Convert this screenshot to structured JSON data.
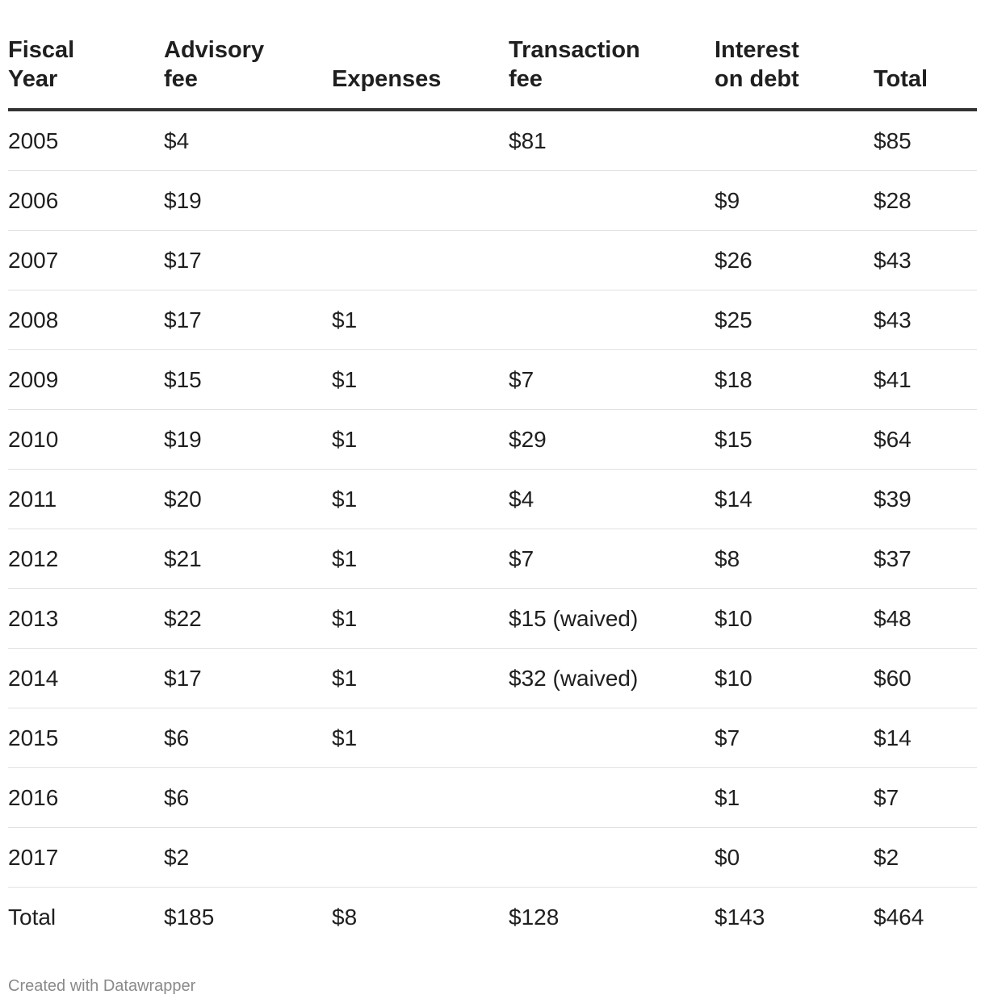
{
  "chart_data": {
    "type": "table",
    "columns": [
      "Fiscal Year",
      "Advisory fee",
      "Expenses",
      "Transaction fee",
      "Interest on debt",
      "Total"
    ],
    "header": [
      [
        "Fiscal",
        "Year"
      ],
      [
        "Advisory",
        "fee"
      ],
      [
        "",
        "Expenses"
      ],
      [
        "Transaction",
        "fee"
      ],
      [
        "Interest",
        "on debt"
      ],
      [
        "",
        "Total"
      ]
    ],
    "rows": [
      [
        "2005",
        "$4",
        "",
        "$81",
        "",
        "$85"
      ],
      [
        "2006",
        "$19",
        "",
        "",
        "$9",
        "$28"
      ],
      [
        "2007",
        "$17",
        "",
        "",
        "$26",
        "$43"
      ],
      [
        "2008",
        "$17",
        "$1",
        "",
        "$25",
        "$43"
      ],
      [
        "2009",
        "$15",
        "$1",
        "$7",
        "$18",
        "$41"
      ],
      [
        "2010",
        "$19",
        "$1",
        "$29",
        "$15",
        "$64"
      ],
      [
        "2011",
        "$20",
        "$1",
        "$4",
        "$14",
        "$39"
      ],
      [
        "2012",
        "$21",
        "$1",
        "$7",
        "$8",
        "$37"
      ],
      [
        "2013",
        "$22",
        "$1",
        "$15 (waived)",
        "$10",
        "$48"
      ],
      [
        "2014",
        "$17",
        "$1",
        "$32 (waived)",
        "$10",
        "$60"
      ],
      [
        "2015",
        "$6",
        "$1",
        "",
        "$7",
        "$14"
      ],
      [
        "2016",
        "$6",
        "",
        "",
        "$1",
        "$7"
      ],
      [
        "2017",
        "$2",
        "",
        "",
        "$0",
        "$2"
      ],
      [
        "Total",
        "$185",
        "$8",
        "$128",
        "$143",
        "$464"
      ]
    ]
  },
  "footer": {
    "credit": "Created with Datawrapper"
  }
}
